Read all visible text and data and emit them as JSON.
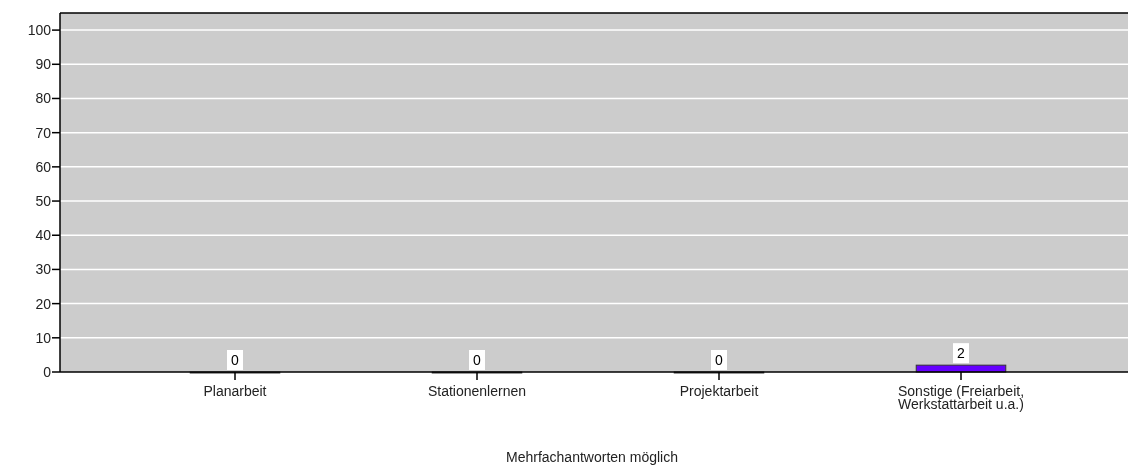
{
  "chart_data": {
    "type": "bar",
    "xlabel": "Mehrfachantworten möglich",
    "categories": [
      "Planarbeit",
      "Stationenlernen",
      "Projektarbeit",
      "Sonstige (Freiarbeit,\nWerkstattarbeit u.a.)"
    ],
    "values": [
      0,
      0,
      0,
      2
    ],
    "color": "#6600ff",
    "ylim": [
      0,
      105
    ],
    "yticks": [
      0,
      10,
      20,
      30,
      40,
      50,
      60,
      70,
      80,
      90,
      100
    ],
    "grid": "y",
    "data_labels": true
  }
}
